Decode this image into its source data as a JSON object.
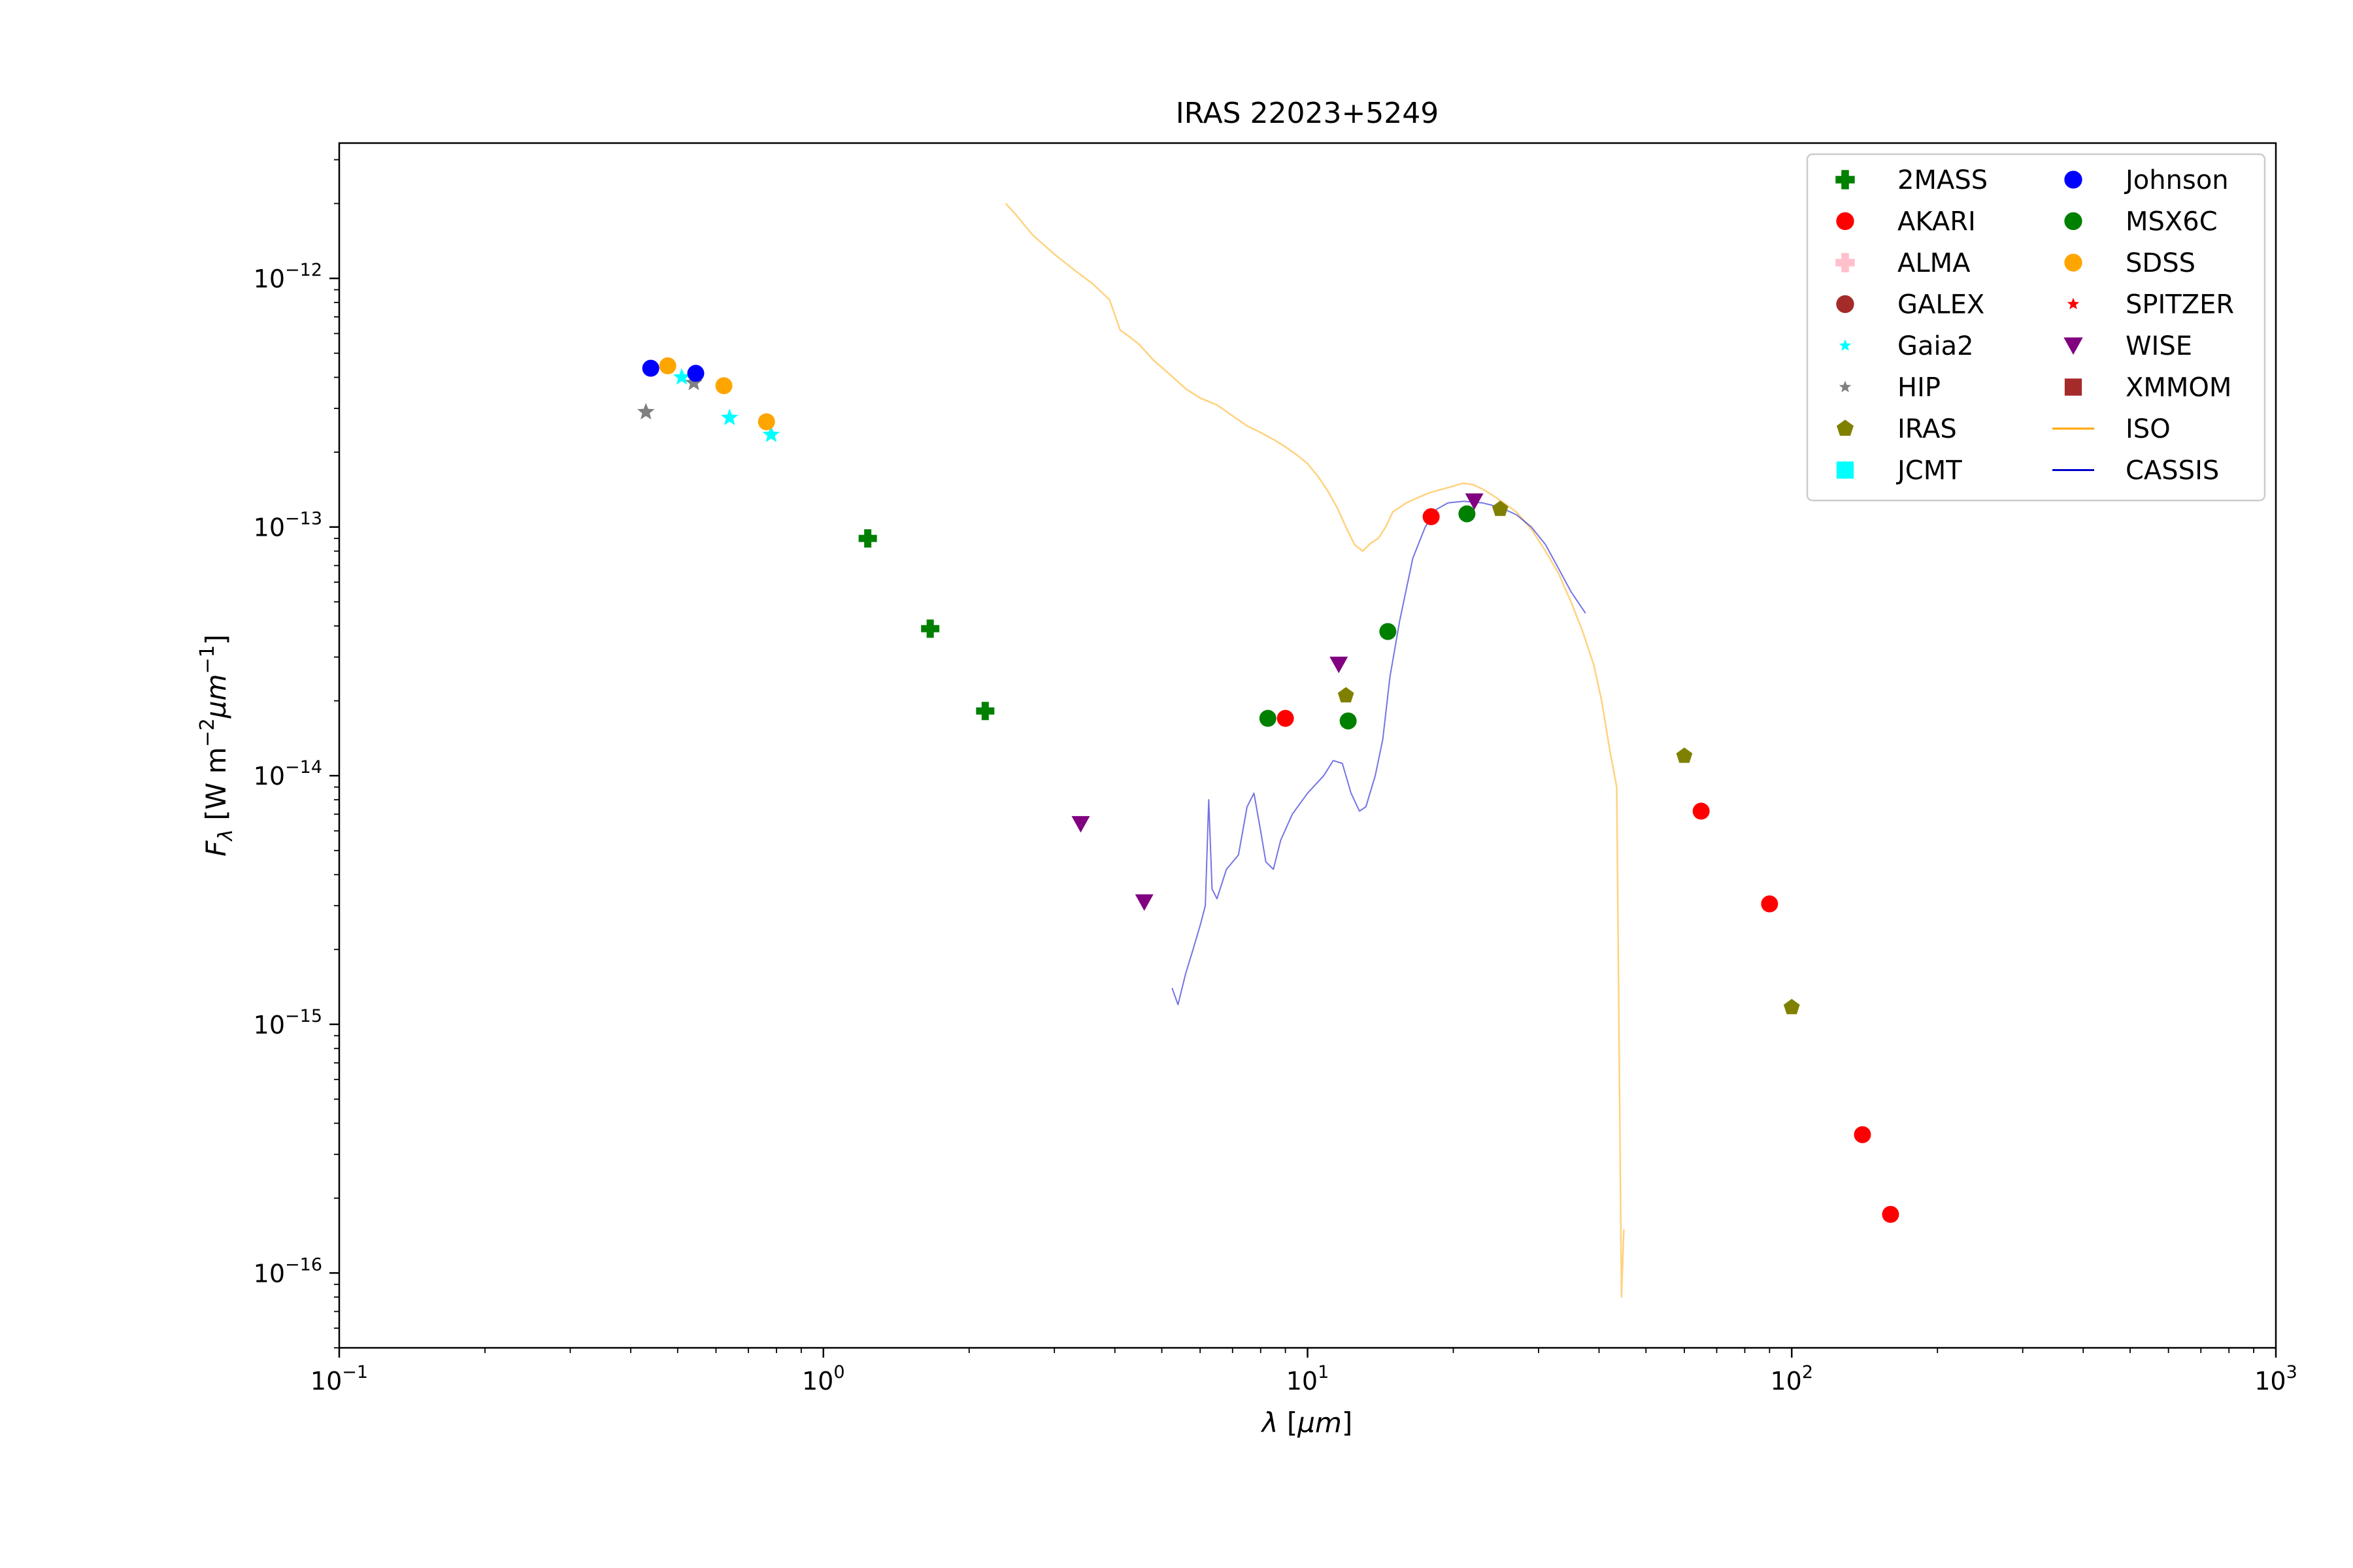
{
  "chart_data": {
    "type": "scatter",
    "title": "IRAS 22023+5249",
    "xlabel": "λ [μm]",
    "ylabel": "F_λ [W m^-2 μm^-1]",
    "xscale": "log",
    "yscale": "log",
    "xlim": [
      0.1,
      1000
    ],
    "ylim": [
      5e-17,
      3.5e-12
    ],
    "grid": false,
    "legend_placement": "top-right",
    "x_ticks": [
      {
        "value": 0.1,
        "base": "10",
        "exp": "−1"
      },
      {
        "value": 1,
        "base": "10",
        "exp": "0"
      },
      {
        "value": 10,
        "base": "10",
        "exp": "1"
      },
      {
        "value": 100,
        "base": "10",
        "exp": "2"
      },
      {
        "value": 1000,
        "base": "10",
        "exp": "3"
      }
    ],
    "y_ticks": [
      {
        "value": 1e-16,
        "base": "10",
        "exp": "−16"
      },
      {
        "value": 1e-15,
        "base": "10",
        "exp": "−15"
      },
      {
        "value": 1e-14,
        "base": "10",
        "exp": "−14"
      },
      {
        "value": 1e-13,
        "base": "10",
        "exp": "−13"
      },
      {
        "value": 1e-12,
        "base": "10",
        "exp": "−12"
      }
    ],
    "series": [
      {
        "name": "2MASS",
        "marker": "plus",
        "color": "#008000",
        "points": [
          [
            1.235,
            9e-14
          ],
          [
            1.662,
            3.9e-14
          ],
          [
            2.159,
            1.82e-14
          ]
        ]
      },
      {
        "name": "AKARI",
        "marker": "circle",
        "color": "#ff0000",
        "points": [
          [
            9.0,
            1.7e-14
          ],
          [
            18.0,
            1.1e-13
          ],
          [
            65.0,
            7.2e-15
          ],
          [
            90.0,
            3.05e-15
          ],
          [
            140.0,
            3.6e-16
          ],
          [
            160.0,
            1.72e-16
          ]
        ]
      },
      {
        "name": "ALMA",
        "marker": "plus",
        "color": "#ffc0cb",
        "points": []
      },
      {
        "name": "GALEX",
        "marker": "circle",
        "color": "#a52a2a",
        "points": []
      },
      {
        "name": "Gaia2",
        "marker": "star",
        "color": "#00ffff",
        "points": [
          [
            0.51,
            4e-13
          ],
          [
            0.64,
            2.75e-13
          ],
          [
            0.78,
            2.35e-13
          ]
        ]
      },
      {
        "name": "HIP",
        "marker": "star",
        "color": "#808080",
        "points": [
          [
            0.43,
            2.9e-13
          ],
          [
            0.54,
            3.8e-13
          ]
        ]
      },
      {
        "name": "IRAS",
        "marker": "pentagon",
        "color": "#808000",
        "points": [
          [
            12.0,
            2.1e-14
          ],
          [
            25.0,
            1.18e-13
          ],
          [
            60.0,
            1.2e-14
          ],
          [
            100.0,
            1.17e-15
          ]
        ]
      },
      {
        "name": "JCMT",
        "marker": "square",
        "color": "#00ffff",
        "points": []
      },
      {
        "name": "Johnson",
        "marker": "circle",
        "color": "#0000ff",
        "points": [
          [
            0.44,
            4.35e-13
          ],
          [
            0.545,
            4.15e-13
          ]
        ]
      },
      {
        "name": "MSX6C",
        "marker": "circle",
        "color": "#008000",
        "points": [
          [
            8.28,
            1.7e-14
          ],
          [
            12.13,
            1.66e-14
          ],
          [
            14.65,
            3.8e-14
          ],
          [
            21.34,
            1.13e-13
          ]
        ]
      },
      {
        "name": "SDSS",
        "marker": "circle",
        "color": "#ffa500",
        "points": [
          [
            0.477,
            4.45e-13
          ],
          [
            0.623,
            3.7e-13
          ],
          [
            0.763,
            2.65e-13
          ]
        ]
      },
      {
        "name": "SPITZER",
        "marker": "star",
        "color": "#ff0000",
        "points": []
      },
      {
        "name": "WISE",
        "marker": "triangle-down",
        "color": "#800080",
        "points": [
          [
            3.4,
            6.4e-15
          ],
          [
            4.6,
            3.1e-15
          ],
          [
            11.6,
            2.8e-14
          ],
          [
            22.1,
            1.27e-13
          ]
        ]
      },
      {
        "name": "XMMOM",
        "marker": "square",
        "color": "#a52a2a",
        "points": []
      },
      {
        "name": "ISO",
        "marker": "line",
        "color": "#ffa500",
        "points": [
          [
            2.38,
            2e-12
          ],
          [
            2.5,
            1.8e-12
          ],
          [
            2.7,
            1.5e-12
          ],
          [
            3.0,
            1.25e-12
          ],
          [
            3.3,
            1.08e-12
          ],
          [
            3.6,
            9.5e-13
          ],
          [
            3.9,
            8.2e-13
          ],
          [
            4.1,
            6.2e-13
          ],
          [
            4.3,
            5.8e-13
          ],
          [
            4.5,
            5.4e-13
          ],
          [
            4.8,
            4.7e-13
          ],
          [
            5.2,
            4.1e-13
          ],
          [
            5.6,
            3.6e-13
          ],
          [
            6.0,
            3.3e-13
          ],
          [
            6.5,
            3.1e-13
          ],
          [
            7.0,
            2.8e-13
          ],
          [
            7.5,
            2.55e-13
          ],
          [
            8.0,
            2.4e-13
          ],
          [
            8.5,
            2.25e-13
          ],
          [
            9.0,
            2.1e-13
          ],
          [
            9.5,
            1.95e-13
          ],
          [
            10.0,
            1.8e-13
          ],
          [
            10.5,
            1.6e-13
          ],
          [
            11.0,
            1.4e-13
          ],
          [
            11.5,
            1.2e-13
          ],
          [
            12.0,
            1e-13
          ],
          [
            12.5,
            8.5e-14
          ],
          [
            13.0,
            8e-14
          ],
          [
            13.5,
            8.6e-14
          ],
          [
            14.0,
            9e-14
          ],
          [
            14.5,
            1e-13
          ],
          [
            15.0,
            1.15e-13
          ],
          [
            16.0,
            1.25e-13
          ],
          [
            17.0,
            1.32e-13
          ],
          [
            18.0,
            1.38e-13
          ],
          [
            19.0,
            1.42e-13
          ],
          [
            20.0,
            1.46e-13
          ],
          [
            21.0,
            1.5e-13
          ],
          [
            22.0,
            1.48e-13
          ],
          [
            23.0,
            1.42e-13
          ],
          [
            24.0,
            1.35e-13
          ],
          [
            25.0,
            1.28e-13
          ],
          [
            27.0,
            1.15e-13
          ],
          [
            29.0,
            9.8e-14
          ],
          [
            31.0,
            8e-14
          ],
          [
            33.0,
            6.5e-14
          ],
          [
            35.0,
            5e-14
          ],
          [
            37.0,
            3.8e-14
          ],
          [
            39.0,
            2.8e-14
          ],
          [
            40.5,
            2e-14
          ],
          [
            42.0,
            1.3e-14
          ],
          [
            43.5,
            9e-15
          ],
          [
            44.5,
            8e-17
          ],
          [
            45.0,
            1.5e-16
          ]
        ]
      },
      {
        "name": "CASSIS",
        "marker": "line",
        "color": "#0000cd",
        "points": [
          [
            5.25,
            1.4e-15
          ],
          [
            5.4,
            1.2e-15
          ],
          [
            5.6,
            1.6e-15
          ],
          [
            5.8,
            2e-15
          ],
          [
            6.0,
            2.5e-15
          ],
          [
            6.15,
            3e-15
          ],
          [
            6.25,
            8e-15
          ],
          [
            6.35,
            3.5e-15
          ],
          [
            6.5,
            3.2e-15
          ],
          [
            6.8,
            4.2e-15
          ],
          [
            7.2,
            4.8e-15
          ],
          [
            7.5,
            7.5e-15
          ],
          [
            7.75,
            8.5e-15
          ],
          [
            8.0,
            6e-15
          ],
          [
            8.2,
            4.5e-15
          ],
          [
            8.5,
            4.2e-15
          ],
          [
            8.8,
            5.5e-15
          ],
          [
            9.3,
            7e-15
          ],
          [
            10.0,
            8.5e-15
          ],
          [
            10.8,
            1e-14
          ],
          [
            11.3,
            1.15e-14
          ],
          [
            11.8,
            1.12e-14
          ],
          [
            12.3,
            8.5e-15
          ],
          [
            12.8,
            7.2e-15
          ],
          [
            13.2,
            7.5e-15
          ],
          [
            13.8,
            1e-14
          ],
          [
            14.3,
            1.4e-14
          ],
          [
            14.8,
            2.5e-14
          ],
          [
            15.5,
            4.2e-14
          ],
          [
            16.5,
            7.5e-14
          ],
          [
            17.5,
            1e-13
          ],
          [
            18.5,
            1.18e-13
          ],
          [
            19.5,
            1.25e-13
          ],
          [
            21.0,
            1.27e-13
          ],
          [
            23.0,
            1.25e-13
          ],
          [
            25.0,
            1.2e-13
          ],
          [
            27.0,
            1.12e-13
          ],
          [
            29.0,
            1e-13
          ],
          [
            31.0,
            8.5e-14
          ],
          [
            33.0,
            6.8e-14
          ],
          [
            35.0,
            5.5e-14
          ],
          [
            37.5,
            4.5e-14
          ]
        ]
      }
    ]
  }
}
